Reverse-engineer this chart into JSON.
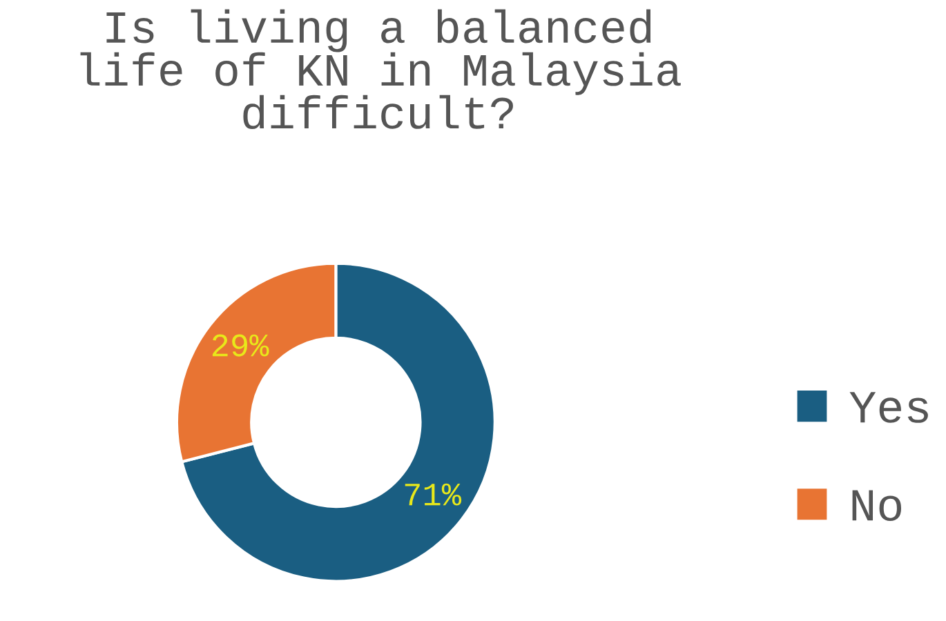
{
  "chart_data": {
    "type": "donut",
    "title": "Is living a balanced\nlife of KN in Malaysia\ndifficult?",
    "categories": [
      "Yes",
      "No"
    ],
    "values": [
      71,
      29
    ],
    "colors": [
      "#1a5e82",
      "#e87433"
    ],
    "value_labels": [
      "71%",
      "29%"
    ],
    "legend": "right"
  }
}
